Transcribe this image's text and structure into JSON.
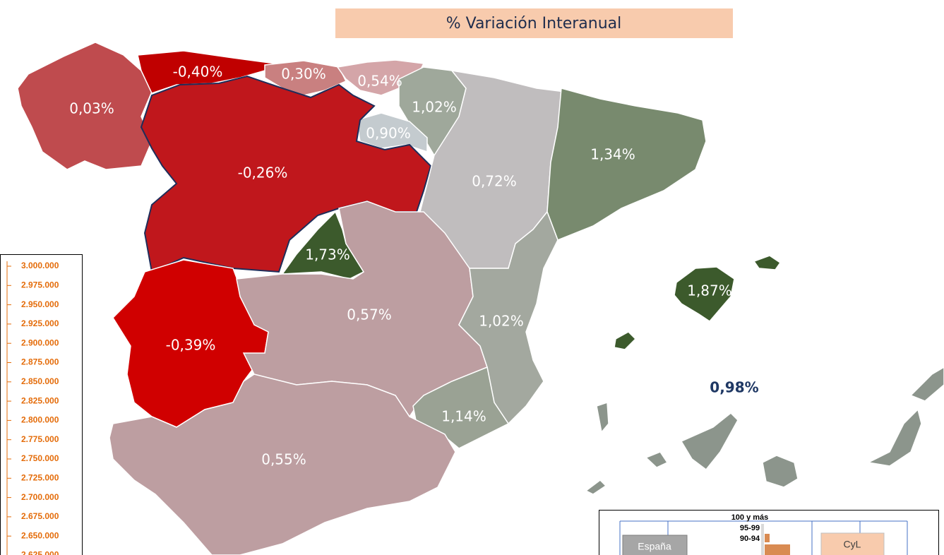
{
  "title": "% Variación Interanual",
  "regions": [
    {
      "label": "0,03%"
    },
    {
      "label": "-0,40%"
    },
    {
      "label": "0,30%"
    },
    {
      "label": "0,54%"
    },
    {
      "label": "1,02%"
    },
    {
      "label": "0,90%"
    },
    {
      "label": "-0,26%"
    },
    {
      "label": "0,72%"
    },
    {
      "label": "1,34%"
    },
    {
      "label": "1,73%"
    },
    {
      "label": "-0,39%"
    },
    {
      "label": "0,57%"
    },
    {
      "label": "1,02%"
    },
    {
      "label": "1,14%"
    },
    {
      "label": "0,55%"
    },
    {
      "label": "1,87%"
    },
    {
      "label": "0,98%"
    }
  ],
  "axis_labels": [
    "3.000.000",
    "2.975.000",
    "2.950.000",
    "2.925.000",
    "2.900.000",
    "2.875.000",
    "2.850.000",
    "2.825.000",
    "2.800.000",
    "2.775.000",
    "2.750.000",
    "2.725.000",
    "2.700.000",
    "2.675.000",
    "2.650.000",
    "2.625.000"
  ],
  "pyramid": {
    "age_groups": [
      "100 y más",
      "95-99",
      "90-94"
    ],
    "buttons": [
      "España",
      "CyL"
    ]
  }
}
